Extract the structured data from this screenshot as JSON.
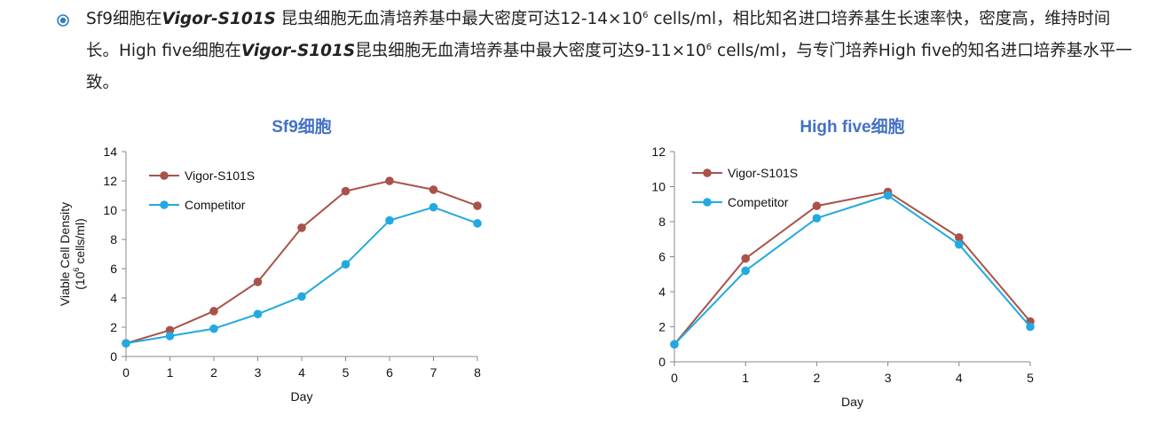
{
  "description": {
    "segments": [
      {
        "t": "Sf9细胞在",
        "style": "normal"
      },
      {
        "t": "Vigor-S101S",
        "style": "italic"
      },
      {
        "t": " 昆虫细胞无血清培养基中最大密度可达12-14×10",
        "style": "normal"
      },
      {
        "t": "6",
        "style": "sup"
      },
      {
        "t": " cells/ml，相比知名进口培养基生长速率快，密度高，维持时间长。High  five细胞在",
        "style": "normal"
      },
      {
        "t": "Vigor-S101S",
        "style": "italic"
      },
      {
        "t": "昆虫细胞无血清培养基中最大密度可达9-11×10",
        "style": "normal"
      },
      {
        "t": "6",
        "style": "sup"
      },
      {
        "t": " cells/ml，与专门培养High  five的知名进口培养基水平一致。",
        "style": "normal"
      }
    ]
  },
  "colors": {
    "title": "#4472C4",
    "vigor": "#A9524A",
    "competitor": "#23A9E1",
    "axis": "#888888",
    "bullet": "#2E7FC2"
  },
  "chart_data": [
    {
      "type": "line",
      "title": "Sf9细胞",
      "xlabel": "Day",
      "ylabel_line1": "Viable Cell Density",
      "ylabel_line2_pre": "(10",
      "ylabel_line2_sup": "6",
      "ylabel_line2_post": " cells/ml)",
      "x": [
        0,
        1,
        2,
        3,
        4,
        5,
        6,
        7,
        8
      ],
      "xlim": [
        0,
        8
      ],
      "ylim": [
        0,
        14
      ],
      "yticks": [
        0,
        2,
        4,
        6,
        8,
        10,
        12,
        14
      ],
      "legend_position": "top-left",
      "series": [
        {
          "name": "Vigor-S101S",
          "color_key": "vigor",
          "values": [
            0.9,
            1.8,
            3.1,
            5.1,
            8.8,
            11.3,
            12.0,
            11.4,
            10.3
          ]
        },
        {
          "name": "Competitor",
          "color_key": "competitor",
          "values": [
            0.9,
            1.4,
            1.9,
            2.9,
            4.1,
            6.3,
            9.3,
            10.2,
            9.1
          ]
        }
      ]
    },
    {
      "type": "line",
      "title": "High five细胞",
      "xlabel": "Day",
      "x": [
        0,
        1,
        2,
        3,
        4,
        5
      ],
      "xlim": [
        0,
        5
      ],
      "ylim": [
        0,
        12
      ],
      "yticks": [
        0,
        2,
        4,
        6,
        8,
        10,
        12
      ],
      "legend_position": "top-left",
      "series": [
        {
          "name": "Vigor-S101S",
          "color_key": "vigor",
          "values": [
            1.0,
            5.9,
            8.9,
            9.7,
            7.1,
            2.3
          ]
        },
        {
          "name": "Competitor",
          "color_key": "competitor",
          "values": [
            1.0,
            5.2,
            8.2,
            9.5,
            6.7,
            2.0
          ]
        }
      ]
    }
  ]
}
